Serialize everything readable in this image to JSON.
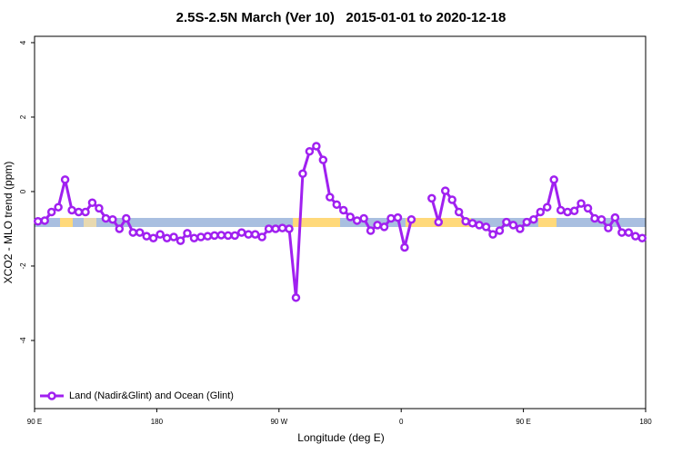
{
  "chart_data": {
    "type": "line",
    "title": "2.5S-2.5N March (Ver 10)   2015-01-01 to 2020-12-18",
    "xlabel": "Longitude (deg E)",
    "ylabel": "XCO2 - MLO trend (ppm)",
    "xlim": [
      90,
      540
    ],
    "ylim": [
      -5.83,
      4.17
    ],
    "xticks": [
      {
        "value": 90,
        "label": "90 E"
      },
      {
        "value": 180,
        "label": "180"
      },
      {
        "value": 270,
        "label": "90 W"
      },
      {
        "value": 360,
        "label": "0"
      },
      {
        "value": 450,
        "label": "90 E"
      },
      {
        "value": 540,
        "label": "180"
      }
    ],
    "yticks": [
      4,
      2,
      0,
      -2,
      -4
    ],
    "legend": "bottomleft",
    "x": [
      92.5,
      97.5,
      102.5,
      107.5,
      112.5,
      117.5,
      122.5,
      127.5,
      132.5,
      137.5,
      142.5,
      147.5,
      152.5,
      157.5,
      162.5,
      167.5,
      172.5,
      177.5,
      182.5,
      187.5,
      192.5,
      197.5,
      202.5,
      207.5,
      212.5,
      217.5,
      222.5,
      227.5,
      232.5,
      237.5,
      242.5,
      247.5,
      252.5,
      257.5,
      262.5,
      267.5,
      272.5,
      277.5,
      282.5,
      287.5,
      292.5,
      297.5,
      302.5,
      307.5,
      312.5,
      317.5,
      322.5,
      327.5,
      332.5,
      337.5,
      342.5,
      347.5,
      352.5,
      357.5,
      362.5,
      367.5,
      372.5,
      377.5,
      382.5,
      387.5,
      392.5,
      397.5,
      402.5,
      407.5,
      412.5,
      417.5,
      422.5,
      427.5,
      432.5,
      437.5,
      442.5,
      447.5,
      452.5,
      457.5,
      462.5,
      467.5,
      472.5,
      477.5,
      482.5,
      487.5,
      492.5,
      497.5,
      502.5,
      507.5,
      512.5,
      517.5,
      522.5,
      527.5,
      532.5,
      537.5
    ],
    "series": [
      {
        "name": "Land (Nadir&Glint) and Ocean (Glint)",
        "color": "#a020f0",
        "values": [
          -0.8,
          -0.78,
          -0.55,
          -0.42,
          0.32,
          -0.5,
          -0.55,
          -0.55,
          -0.3,
          -0.45,
          -0.72,
          -0.75,
          -1.0,
          -0.72,
          -1.1,
          -1.1,
          -1.2,
          -1.25,
          -1.15,
          -1.25,
          -1.22,
          -1.32,
          -1.12,
          -1.25,
          -1.22,
          -1.2,
          -1.18,
          -1.17,
          -1.18,
          -1.18,
          -1.1,
          -1.15,
          -1.15,
          -1.22,
          -1.0,
          -1.0,
          -0.98,
          -1.0,
          -2.85,
          0.48,
          1.08,
          1.22,
          0.85,
          -0.15,
          -0.35,
          -0.5,
          -0.68,
          -0.78,
          -0.72,
          -1.05,
          -0.9,
          -0.95,
          -0.72,
          -0.7,
          -1.5,
          -0.75,
          null,
          null,
          -0.18,
          -0.82,
          0.02,
          -0.22,
          -0.55,
          -0.8,
          -0.85,
          -0.9,
          -0.95,
          -1.15,
          -1.05,
          -0.82,
          -0.9,
          -1.0,
          -0.82,
          -0.75,
          -0.55,
          -0.42,
          0.32,
          -0.5,
          -0.55,
          -0.52,
          -0.32,
          -0.45,
          -0.72,
          -0.75,
          -0.98,
          -0.7,
          -1.1,
          -1.1,
          -1.2,
          -1.25
        ]
      }
    ]
  }
}
